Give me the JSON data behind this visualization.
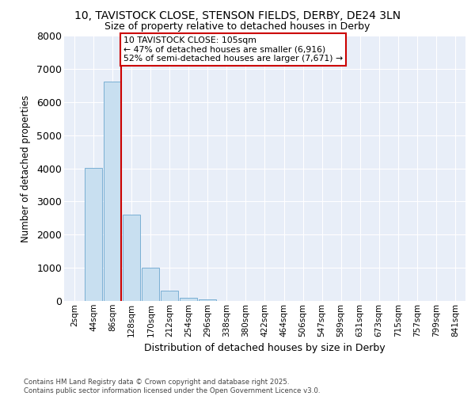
{
  "title_line1": "10, TAVISTOCK CLOSE, STENSON FIELDS, DERBY, DE24 3LN",
  "title_line2": "Size of property relative to detached houses in Derby",
  "xlabel": "Distribution of detached houses by size in Derby",
  "ylabel": "Number of detached properties",
  "categories": [
    "2sqm",
    "44sqm",
    "86sqm",
    "128sqm",
    "170sqm",
    "212sqm",
    "254sqm",
    "296sqm",
    "338sqm",
    "380sqm",
    "422sqm",
    "464sqm",
    "506sqm",
    "547sqm",
    "589sqm",
    "631sqm",
    "673sqm",
    "715sqm",
    "757sqm",
    "799sqm",
    "841sqm"
  ],
  "values": [
    0,
    4020,
    6620,
    2600,
    1000,
    300,
    100,
    40,
    5,
    0,
    0,
    0,
    0,
    0,
    0,
    0,
    0,
    0,
    0,
    0,
    0
  ],
  "bar_color": "#c8dff0",
  "bar_edge_color": "#7aafd4",
  "background_color": "#e8eef8",
  "grid_color": "#ffffff",
  "red_line_x": 2.45,
  "annotation_text": "10 TAVISTOCK CLOSE: 105sqm\n← 47% of detached houses are smaller (6,916)\n52% of semi-detached houses are larger (7,671) →",
  "annotation_box_color": "#cc0000",
  "ylim": [
    0,
    8000
  ],
  "yticks": [
    0,
    1000,
    2000,
    3000,
    4000,
    5000,
    6000,
    7000,
    8000
  ],
  "footer_line1": "Contains HM Land Registry data © Crown copyright and database right 2025.",
  "footer_line2": "Contains public sector information licensed under the Open Government Licence v3.0."
}
